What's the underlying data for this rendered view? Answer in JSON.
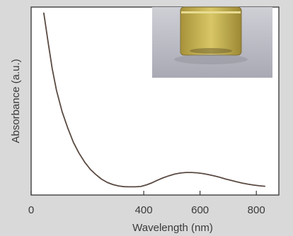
{
  "chart_data": {
    "type": "line",
    "xlabel": "Wavelength (nm)",
    "ylabel": "Absorbance (a.u.)",
    "xlim": [
      0,
      880
    ],
    "ylim": [
      0,
      1
    ],
    "x_ticks": [
      0,
      400,
      600,
      800
    ],
    "grid": false,
    "legend": "none",
    "inset": "photo of a vial containing a yellow liquid (top-right)",
    "series": [
      {
        "x": [
          45,
          60,
          75,
          90,
          110,
          130,
          150,
          170,
          190,
          210,
          230,
          250,
          270,
          290,
          310,
          330,
          350,
          370,
          390,
          410,
          430,
          450,
          470,
          490,
          510,
          530,
          550,
          570,
          590,
          610,
          630,
          650,
          670,
          690,
          710,
          730,
          750,
          770,
          790,
          810,
          830
        ],
        "values": [
          0.99,
          0.83,
          0.68,
          0.56,
          0.44,
          0.35,
          0.27,
          0.21,
          0.16,
          0.12,
          0.09,
          0.065,
          0.047,
          0.035,
          0.027,
          0.023,
          0.022,
          0.022,
          0.024,
          0.033,
          0.045,
          0.06,
          0.073,
          0.084,
          0.093,
          0.099,
          0.102,
          0.102,
          0.1,
          0.096,
          0.09,
          0.083,
          0.075,
          0.066,
          0.058,
          0.05,
          0.043,
          0.037,
          0.032,
          0.028,
          0.025
        ]
      }
    ]
  },
  "colors": {
    "background": "#d9d9d9",
    "plot_area": "#ffffff",
    "line": "#5a4a42",
    "axis": "#333333",
    "vial_liquid": "#c8b44a"
  }
}
